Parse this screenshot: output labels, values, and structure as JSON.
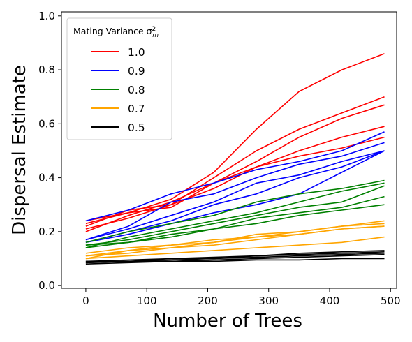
{
  "chart_data": {
    "type": "line",
    "xlabel": "Number of Trees",
    "ylabel": "Dispersal Estimate",
    "xlim": [
      -40,
      510
    ],
    "ylim": [
      -0.01,
      1.015
    ],
    "xticks": [
      0,
      100,
      200,
      300,
      400,
      500
    ],
    "yticks": [
      0.0,
      0.2,
      0.4,
      0.6,
      0.8,
      1.0
    ],
    "xtick_labels": [
      "0",
      "100",
      "200",
      "300",
      "400",
      "500"
    ],
    "ytick_labels": [
      "0.0",
      "0.2",
      "0.4",
      "0.6",
      "0.8",
      "1.0"
    ],
    "grid": false,
    "legend": {
      "title": "Mating Variance σ²m",
      "title_text": "Mating Variance σ",
      "title_sup": "2",
      "title_sub": "m",
      "placement": "upper-left"
    },
    "x": [
      0,
      70,
      140,
      210,
      280,
      350,
      420,
      490
    ],
    "groups": [
      {
        "name": "1.0",
        "color": "#ff0000",
        "lines": [
          [
            0.23,
            0.27,
            0.32,
            0.42,
            0.58,
            0.72,
            0.8,
            0.86
          ],
          [
            0.21,
            0.25,
            0.3,
            0.4,
            0.5,
            0.58,
            0.64,
            0.7
          ],
          [
            0.2,
            0.26,
            0.31,
            0.38,
            0.46,
            0.55,
            0.62,
            0.67
          ],
          [
            0.22,
            0.28,
            0.3,
            0.36,
            0.44,
            0.5,
            0.55,
            0.59
          ],
          [
            0.24,
            0.27,
            0.29,
            0.38,
            0.44,
            0.48,
            0.51,
            0.55
          ]
        ]
      },
      {
        "name": "0.9",
        "color": "#0000ff",
        "lines": [
          [
            0.24,
            0.28,
            0.34,
            0.38,
            0.43,
            0.46,
            0.5,
            0.57
          ],
          [
            0.17,
            0.22,
            0.31,
            0.34,
            0.4,
            0.45,
            0.48,
            0.53
          ],
          [
            0.17,
            0.21,
            0.26,
            0.31,
            0.38,
            0.41,
            0.46,
            0.5
          ],
          [
            0.16,
            0.2,
            0.24,
            0.3,
            0.34,
            0.4,
            0.44,
            0.5
          ],
          [
            0.16,
            0.19,
            0.23,
            0.27,
            0.3,
            0.34,
            0.42,
            0.5
          ]
        ]
      },
      {
        "name": "0.8",
        "color": "#008000",
        "lines": [
          [
            0.16,
            0.2,
            0.23,
            0.26,
            0.31,
            0.34,
            0.36,
            0.39
          ],
          [
            0.14,
            0.18,
            0.21,
            0.24,
            0.27,
            0.31,
            0.35,
            0.38
          ],
          [
            0.15,
            0.17,
            0.2,
            0.23,
            0.26,
            0.29,
            0.31,
            0.37
          ],
          [
            0.14,
            0.16,
            0.19,
            0.21,
            0.25,
            0.27,
            0.29,
            0.33
          ],
          [
            0.15,
            0.16,
            0.18,
            0.21,
            0.23,
            0.26,
            0.28,
            0.3
          ]
        ]
      },
      {
        "name": "0.7",
        "color": "#ffa500",
        "lines": [
          [
            0.11,
            0.13,
            0.15,
            0.16,
            0.19,
            0.2,
            0.22,
            0.24
          ],
          [
            0.12,
            0.14,
            0.15,
            0.17,
            0.18,
            0.2,
            0.22,
            0.23
          ],
          [
            0.1,
            0.13,
            0.14,
            0.16,
            0.18,
            0.19,
            0.21,
            0.22
          ],
          [
            0.11,
            0.12,
            0.14,
            0.15,
            0.17,
            0.19,
            0.21,
            0.22
          ],
          [
            0.1,
            0.11,
            0.12,
            0.13,
            0.14,
            0.15,
            0.16,
            0.18
          ]
        ]
      },
      {
        "name": "0.5",
        "color": "#000000",
        "lines": [
          [
            0.09,
            0.095,
            0.1,
            0.105,
            0.11,
            0.12,
            0.125,
            0.13
          ],
          [
            0.085,
            0.09,
            0.1,
            0.1,
            0.11,
            0.115,
            0.12,
            0.125
          ],
          [
            0.09,
            0.09,
            0.095,
            0.1,
            0.105,
            0.11,
            0.115,
            0.12
          ],
          [
            0.085,
            0.09,
            0.09,
            0.095,
            0.1,
            0.105,
            0.11,
            0.115
          ],
          [
            0.08,
            0.085,
            0.09,
            0.09,
            0.095,
            0.095,
            0.1,
            0.1
          ]
        ]
      }
    ]
  }
}
